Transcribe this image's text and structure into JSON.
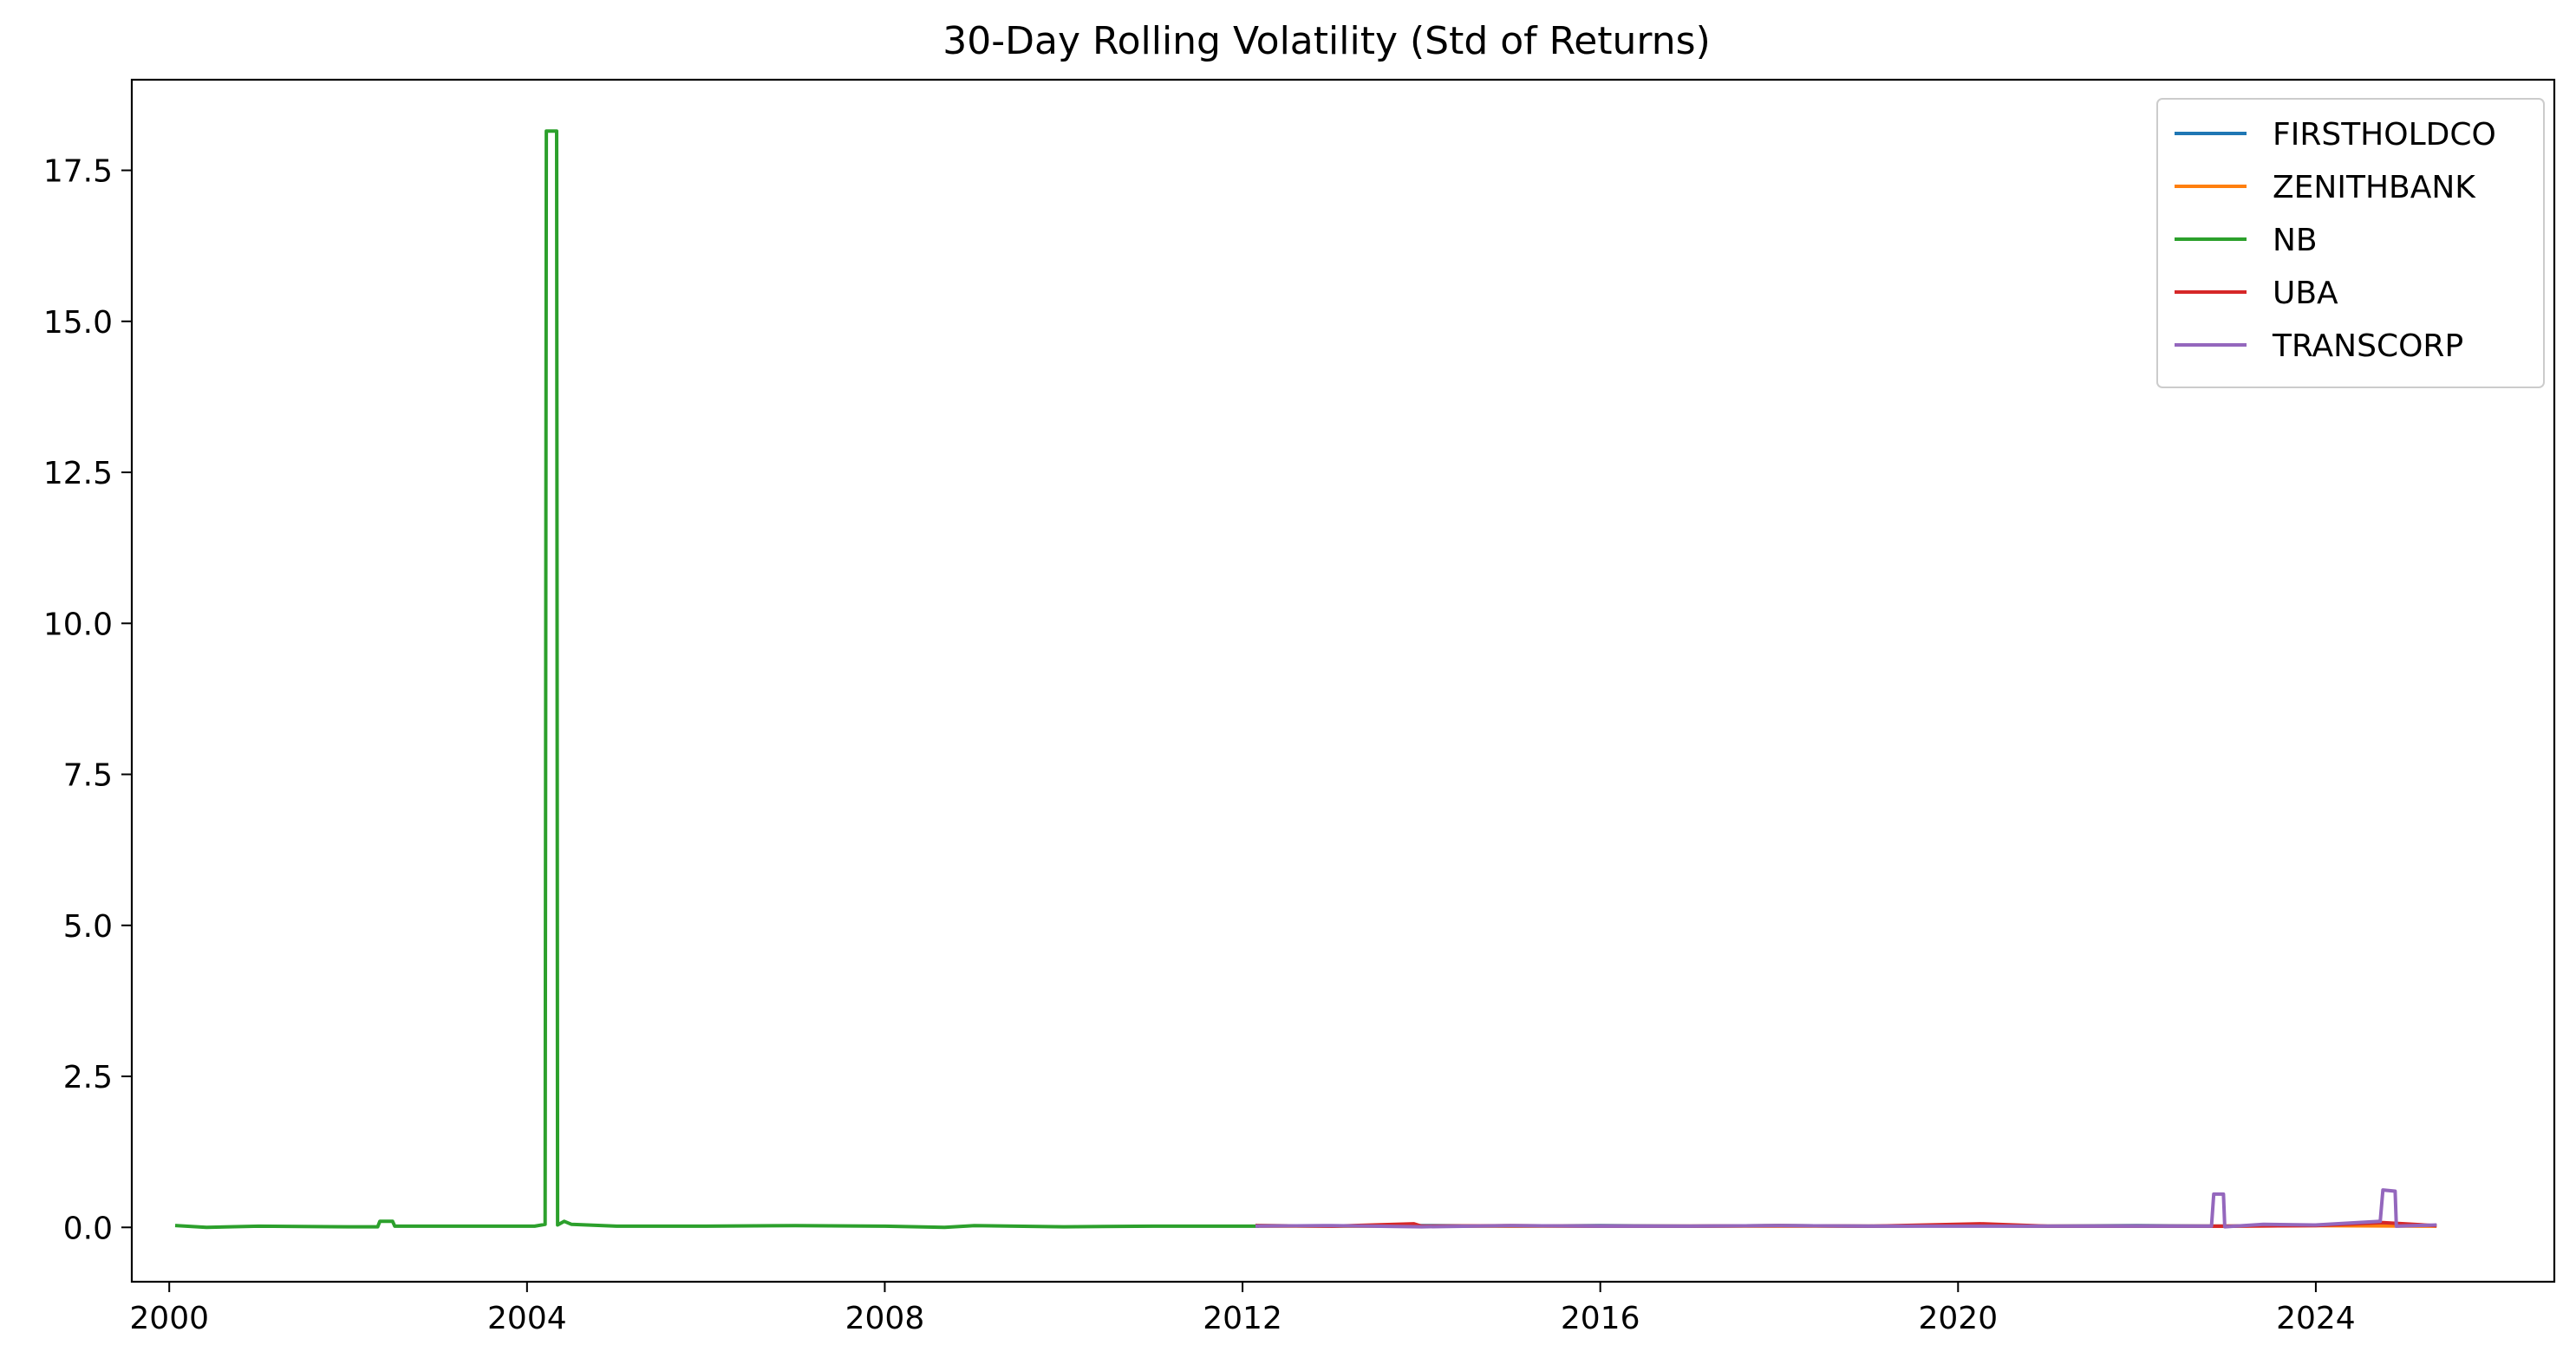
{
  "chart_data": {
    "type": "line",
    "title": "30-Day Rolling Volatility (Std of Returns)",
    "xlabel": "",
    "ylabel": "",
    "x_type": "date",
    "xlim": [
      "1999-08-01",
      "2026-09-01"
    ],
    "ylim": [
      -0.9,
      19.0
    ],
    "x_ticks": [
      {
        "value": "2000-01-01",
        "label": "2000"
      },
      {
        "value": "2004-01-01",
        "label": "2004"
      },
      {
        "value": "2008-01-01",
        "label": "2008"
      },
      {
        "value": "2012-01-01",
        "label": "2012"
      },
      {
        "value": "2016-01-01",
        "label": "2016"
      },
      {
        "value": "2020-01-01",
        "label": "2020"
      },
      {
        "value": "2024-01-01",
        "label": "2024"
      }
    ],
    "y_ticks": [
      {
        "value": 0.0,
        "label": "0.0"
      },
      {
        "value": 2.5,
        "label": "2.5"
      },
      {
        "value": 5.0,
        "label": "5.0"
      },
      {
        "value": 7.5,
        "label": "7.5"
      },
      {
        "value": 10.0,
        "label": "10.0"
      },
      {
        "value": 12.5,
        "label": "12.5"
      },
      {
        "value": 15.0,
        "label": "15.0"
      },
      {
        "value": 17.5,
        "label": "17.5"
      }
    ],
    "grid": false,
    "legend_position": "top-right",
    "series": [
      {
        "name": "FIRSTHOLDCO",
        "color": "#1f77b4",
        "points": [
          [
            "2012-03-01",
            0.03
          ],
          [
            "2013-01-01",
            0.02
          ],
          [
            "2014-01-01",
            0.03
          ],
          [
            "2015-01-01",
            0.02
          ],
          [
            "2016-01-01",
            0.03
          ],
          [
            "2017-01-01",
            0.02
          ],
          [
            "2018-01-01",
            0.03
          ],
          [
            "2019-01-01",
            0.02
          ],
          [
            "2020-01-01",
            0.03
          ],
          [
            "2021-01-01",
            0.02
          ],
          [
            "2022-01-01",
            0.03
          ],
          [
            "2023-01-01",
            0.02
          ],
          [
            "2024-01-01",
            0.04
          ],
          [
            "2024-10-01",
            0.05
          ],
          [
            "2025-05-01",
            0.03
          ]
        ]
      },
      {
        "name": "ZENITHBANK",
        "color": "#ff7f0e",
        "points": [
          [
            "2012-03-01",
            0.02
          ],
          [
            "2013-01-01",
            0.02
          ],
          [
            "2014-01-01",
            0.02
          ],
          [
            "2015-01-01",
            0.02
          ],
          [
            "2016-01-01",
            0.02
          ],
          [
            "2017-01-01",
            0.02
          ],
          [
            "2018-01-01",
            0.02
          ],
          [
            "2019-01-01",
            0.02
          ],
          [
            "2020-01-01",
            0.03
          ],
          [
            "2021-01-01",
            0.02
          ],
          [
            "2022-01-01",
            0.02
          ],
          [
            "2023-01-01",
            0.02
          ],
          [
            "2024-01-01",
            0.03
          ],
          [
            "2025-05-01",
            0.02
          ]
        ]
      },
      {
        "name": "NB",
        "color": "#2ca02c",
        "points": [
          [
            "2000-02-01",
            0.03
          ],
          [
            "2000-06-01",
            0.0
          ],
          [
            "2001-01-01",
            0.02
          ],
          [
            "2002-01-01",
            0.01
          ],
          [
            "2002-05-01",
            0.01
          ],
          [
            "2002-05-10",
            0.1
          ],
          [
            "2002-07-01",
            0.1
          ],
          [
            "2002-07-10",
            0.02
          ],
          [
            "2003-06-01",
            0.02
          ],
          [
            "2004-02-01",
            0.02
          ],
          [
            "2004-03-15",
            0.05
          ],
          [
            "2004-03-20",
            18.15
          ],
          [
            "2004-05-01",
            18.15
          ],
          [
            "2004-05-05",
            0.04
          ],
          [
            "2004-06-01",
            0.1
          ],
          [
            "2004-07-01",
            0.05
          ],
          [
            "2005-01-01",
            0.02
          ],
          [
            "2006-01-01",
            0.02
          ],
          [
            "2007-01-01",
            0.03
          ],
          [
            "2008-01-01",
            0.02
          ],
          [
            "2008-09-01",
            0.0
          ],
          [
            "2009-01-01",
            0.03
          ],
          [
            "2010-01-01",
            0.01
          ],
          [
            "2011-01-01",
            0.02
          ],
          [
            "2012-03-01",
            0.02
          ]
        ]
      },
      {
        "name": "UBA",
        "color": "#d62728",
        "points": [
          [
            "2012-03-01",
            0.03
          ],
          [
            "2013-01-01",
            0.02
          ],
          [
            "2013-12-01",
            0.06
          ],
          [
            "2014-01-01",
            0.02
          ],
          [
            "2015-01-01",
            0.03
          ],
          [
            "2016-01-01",
            0.02
          ],
          [
            "2017-01-01",
            0.02
          ],
          [
            "2018-01-01",
            0.03
          ],
          [
            "2019-01-01",
            0.02
          ],
          [
            "2020-04-01",
            0.06
          ],
          [
            "2021-01-01",
            0.02
          ],
          [
            "2022-01-01",
            0.02
          ],
          [
            "2023-01-01",
            0.02
          ],
          [
            "2024-01-01",
            0.03
          ],
          [
            "2024-10-01",
            0.08
          ],
          [
            "2025-05-01",
            0.03
          ]
        ]
      },
      {
        "name": "TRANSCORP",
        "color": "#9467bd",
        "points": [
          [
            "2012-03-01",
            0.02
          ],
          [
            "2013-01-01",
            0.03
          ],
          [
            "2014-01-01",
            0.01
          ],
          [
            "2015-01-01",
            0.03
          ],
          [
            "2016-01-01",
            0.02
          ],
          [
            "2017-01-01",
            0.02
          ],
          [
            "2018-01-01",
            0.03
          ],
          [
            "2019-01-01",
            0.02
          ],
          [
            "2020-01-01",
            0.02
          ],
          [
            "2021-01-01",
            0.02
          ],
          [
            "2022-01-01",
            0.02
          ],
          [
            "2022-11-01",
            0.02
          ],
          [
            "2022-11-10",
            0.55
          ],
          [
            "2022-12-20",
            0.55
          ],
          [
            "2022-12-25",
            0.01
          ],
          [
            "2023-06-01",
            0.05
          ],
          [
            "2024-01-01",
            0.04
          ],
          [
            "2024-09-20",
            0.1
          ],
          [
            "2024-10-01",
            0.62
          ],
          [
            "2024-11-20",
            0.6
          ],
          [
            "2024-11-25",
            0.02
          ],
          [
            "2025-05-01",
            0.04
          ]
        ]
      }
    ]
  }
}
